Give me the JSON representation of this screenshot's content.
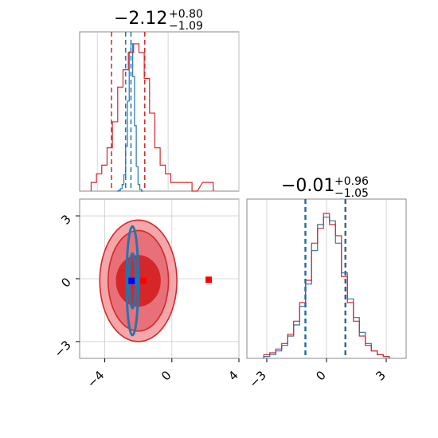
{
  "chart_data": [
    {
      "type": "histogram",
      "panel": "top-left",
      "title": {
        "value": "−2.12",
        "plus": "+0.80",
        "minus": "−1.09"
      },
      "xlim": [
        -5,
        4
      ],
      "grid": true,
      "series": [
        {
          "color": "#1f77b4",
          "bin_centers": [
            -2.85,
            -2.75,
            -2.65,
            -2.55,
            -2.45,
            -2.35,
            -2.25,
            -2.15,
            -2.05,
            -1.95,
            -1.85,
            -1.75,
            -1.65,
            -1.55,
            -1.45
          ],
          "counts": [
            0,
            1,
            3,
            8,
            20,
            55,
            110,
            170,
            180,
            140,
            80,
            30,
            8,
            2,
            0
          ],
          "quantile_lines": [
            -2.4,
            -2.1
          ]
        },
        {
          "color": "#d62728",
          "bin_centers": [
            -4.2,
            -3.9,
            -3.6,
            -3.3,
            -3.0,
            -2.7,
            -2.4,
            -2.1,
            -1.8,
            -1.5,
            -1.2,
            -0.9,
            -0.6,
            -0.3,
            0.0,
            0.3,
            1.2,
            1.5,
            2.1,
            2.4
          ],
          "counts": [
            1,
            2,
            3,
            5,
            8,
            12,
            14,
            16,
            17,
            16,
            13,
            9,
            5,
            3,
            2,
            1,
            1,
            0,
            1,
            1
          ],
          "quantile_lines": [
            -3.2,
            -1.32
          ]
        }
      ]
    },
    {
      "type": "contour",
      "panel": "bottom-left",
      "xlim": [
        -5.5,
        4
      ],
      "ylim": [
        -3.8,
        3.8
      ],
      "x_ticks": [
        "−4",
        "0",
        "4"
      ],
      "y_ticks": [
        "−3",
        "0",
        "3"
      ],
      "x_tick_values": [
        -4,
        0,
        4
      ],
      "y_tick_values": [
        -3,
        0,
        3
      ],
      "grid": true,
      "red_contours": [
        {
          "center": [
            -2.0,
            -0.1
          ],
          "half_width": 2.3,
          "half_height": 2.9,
          "fill": "#f4a6a8"
        },
        {
          "center": [
            -2.0,
            -0.1
          ],
          "half_width": 1.8,
          "half_height": 2.4,
          "fill": "#e8707a"
        },
        {
          "center": [
            -2.0,
            -0.1
          ],
          "half_width": 1.3,
          "half_height": 1.2,
          "fill": "#d62728"
        }
      ],
      "blue_contours": [
        {
          "center": [
            -2.35,
            -0.1
          ],
          "half_width": 0.35,
          "half_height": 2.6
        },
        {
          "center": [
            -2.35,
            -0.1
          ],
          "half_width": 0.2,
          "half_height": 1.3
        }
      ],
      "markers": [
        {
          "x": -2.4,
          "y": -0.1,
          "color": "#0000ff"
        },
        {
          "x": -1.7,
          "y": -0.1,
          "color": "#ff0000"
        },
        {
          "x": 2.2,
          "y": -0.05,
          "color": "#ff0000"
        }
      ]
    },
    {
      "type": "histogram",
      "panel": "bottom-right",
      "title": {
        "value": "−0.01",
        "plus": "+0.96",
        "minus": "−1.05"
      },
      "xlim": [
        -4,
        4
      ],
      "x_ticks": [
        "−3",
        "0",
        "3"
      ],
      "x_tick_values": [
        -3,
        0,
        3
      ],
      "grid": true,
      "quantile_lines": [
        -1.06,
        0.95
      ],
      "series": [
        {
          "color": "#1f77b4",
          "bin_centers": [
            -3.0,
            -2.7,
            -2.4,
            -2.1,
            -1.8,
            -1.5,
            -1.2,
            -0.9,
            -0.6,
            -0.3,
            0.0,
            0.3,
            0.6,
            0.9,
            1.2,
            1.5,
            1.8,
            2.1,
            2.4,
            2.7,
            3.0
          ],
          "counts": [
            1,
            2,
            4,
            7,
            12,
            18,
            28,
            40,
            58,
            72,
            76,
            74,
            62,
            46,
            32,
            22,
            14,
            8,
            4,
            2,
            1
          ]
        },
        {
          "color": "#d62728",
          "bin_centers": [
            -3.0,
            -2.7,
            -2.4,
            -2.1,
            -1.8,
            -1.5,
            -1.2,
            -0.9,
            -0.6,
            -0.3,
            0.0,
            0.3,
            0.6,
            0.9,
            1.2,
            1.5,
            1.8,
            2.1,
            2.4,
            2.7,
            3.0
          ],
          "counts": [
            2,
            3,
            5,
            8,
            13,
            20,
            30,
            42,
            62,
            70,
            78,
            72,
            66,
            44,
            30,
            20,
            12,
            7,
            4,
            2,
            1
          ]
        }
      ]
    }
  ]
}
